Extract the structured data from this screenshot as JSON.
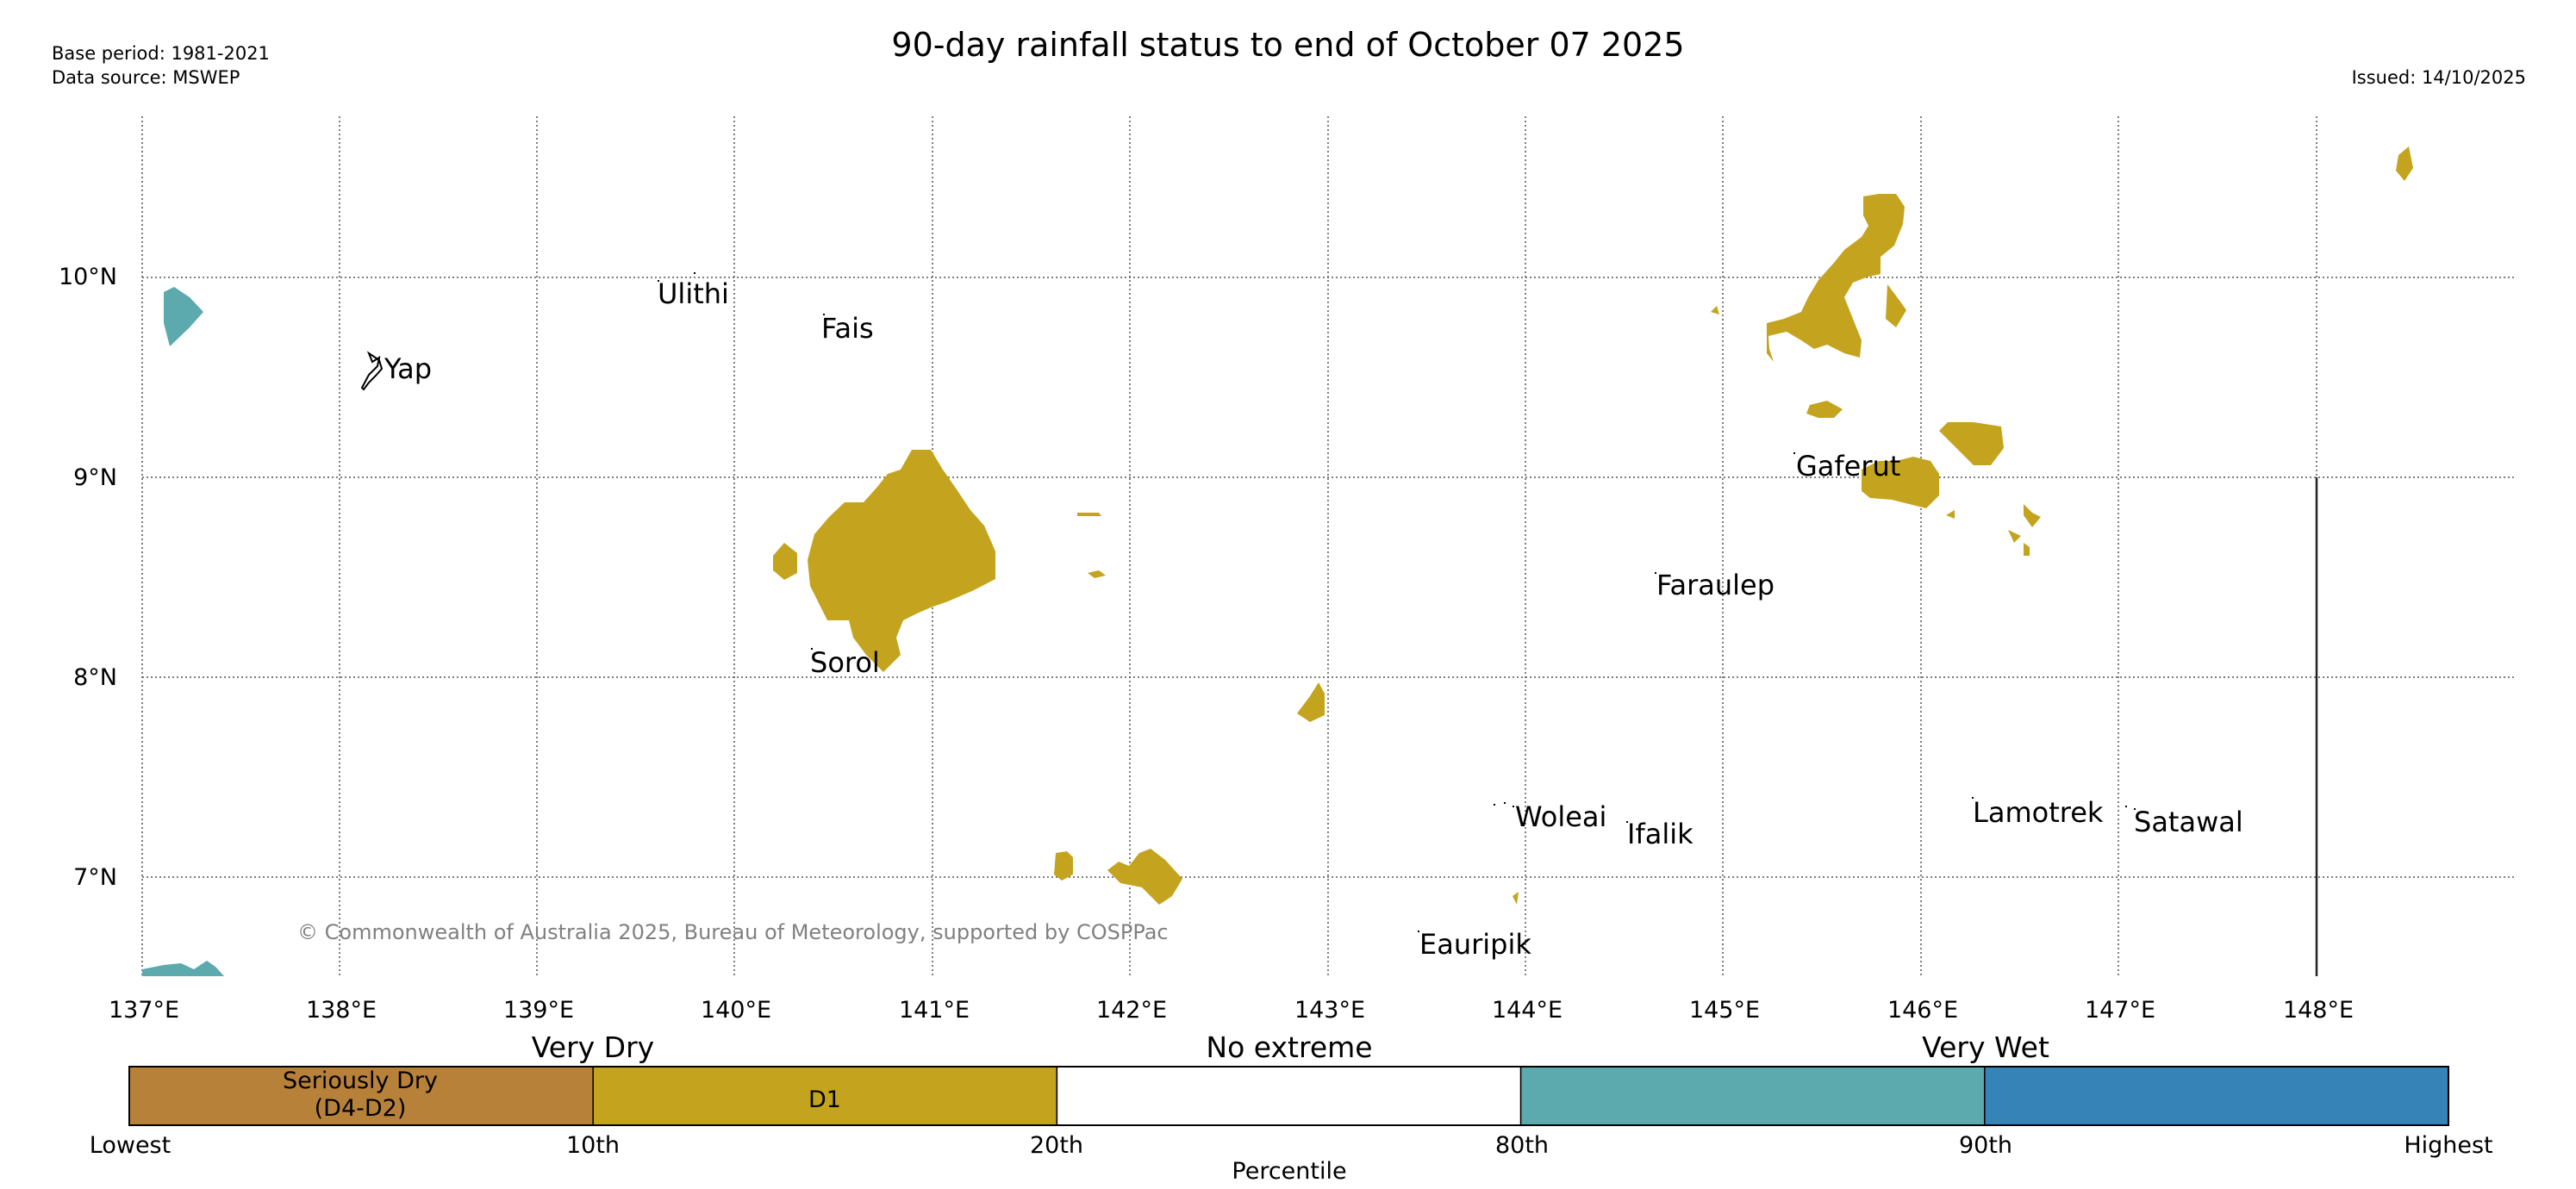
{
  "header": {
    "title": "90-day rainfall status to end of October 07 2025",
    "base_period": "Base period: 1981-2021",
    "data_source": "Data source: MSWEP",
    "issued": "Issued: 14/10/2025"
  },
  "map": {
    "lon_labels": [
      "137°E",
      "138°E",
      "139°E",
      "140°E",
      "141°E",
      "142°E",
      "143°E",
      "144°E",
      "145°E",
      "146°E",
      "147°E",
      "148°E"
    ],
    "lat_labels": [
      "10°N",
      "9°N",
      "8°N",
      "7°N"
    ],
    "places": [
      "Ulithi",
      "Fais",
      "Yap",
      "Gaferut",
      "Faraulep",
      "Sorol",
      "Woleai",
      "Ifalik",
      "Lamotrek",
      "Satawal",
      "Eauripik"
    ],
    "copyright": "© Commonwealth of Australia 2025, Bureau of Meteorology, supported by COSPPac",
    "colors": {
      "d1": "#c4a41e",
      "very_wet": "#5ca9ae"
    }
  },
  "legend": {
    "categories": [
      "Very Dry",
      "No extreme",
      "Very Wet"
    ],
    "segments": [
      {
        "label_line1": "Seriously Dry",
        "label_line2": "(D4-D2)",
        "color": "#b8813a"
      },
      {
        "label": "D1",
        "color": "#c4a41e"
      },
      {
        "label": "",
        "color": "#ffffff"
      },
      {
        "label": "",
        "color": "#5ca9ae"
      },
      {
        "label": "",
        "color": "#3683b8"
      }
    ],
    "percentile_ticks": [
      "Lowest",
      "10th",
      "20th",
      "80th",
      "90th",
      "Highest"
    ],
    "axis_label": "Percentile"
  }
}
